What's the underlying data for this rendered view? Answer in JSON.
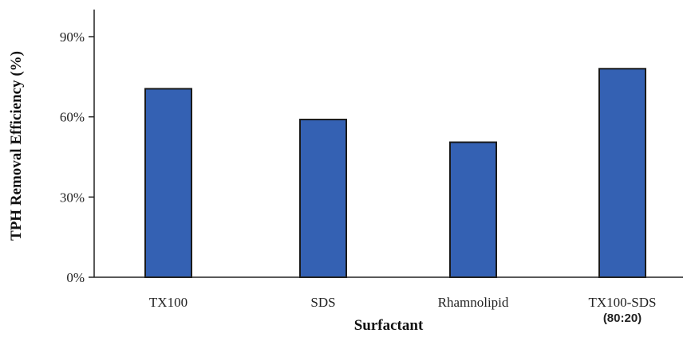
{
  "chart_data": {
    "type": "bar",
    "categories": [
      "TX100",
      "SDS",
      "Rhamnolipid",
      "TX100-SDS"
    ],
    "category_sublabels": [
      "",
      "",
      "",
      "(80:20)"
    ],
    "values": [
      70.5,
      59,
      50.5,
      78
    ],
    "xlabel": "Surfactant",
    "ylabel": "TPH Removal Efficiency (%)",
    "ylim": [
      0,
      100
    ],
    "yticks": [
      0,
      30,
      60,
      90
    ],
    "ytick_labels": [
      "0%",
      "30%",
      "60%",
      "90%"
    ],
    "grid": false,
    "bar_color": "#3461b3"
  }
}
